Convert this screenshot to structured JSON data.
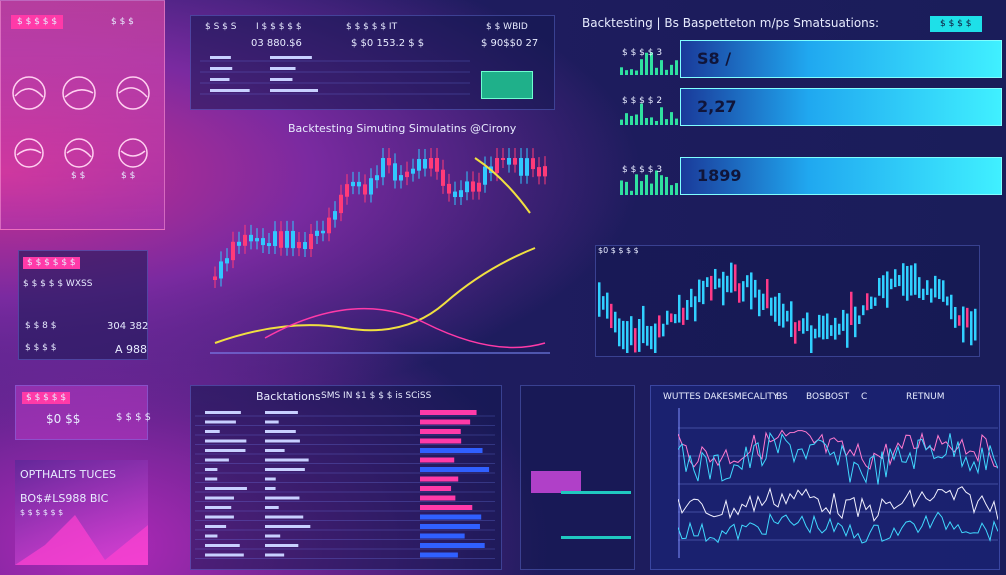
{
  "left_panel": {
    "title": "$ $ $  $ $",
    "labels": [
      "$ $ $",
      "$ $",
      "$ $"
    ]
  },
  "top_table": {
    "headers": [
      "$ S $ S",
      "I $ $ $ $ $",
      "$ $ $ $ $ IT",
      "$ $ WBID"
    ],
    "values": [
      "03 880.$6",
      "$ $0 153.2 $ $",
      "$ 90$$0 27"
    ]
  },
  "center_chart": {
    "title": "Backtesting  Simuting  Simulatins  @Cirony"
  },
  "right_header": {
    "title": "Backtesting | Bs Baspetteton m/ps Smatsuations:",
    "button": "$ $ $ $"
  },
  "metrics": [
    {
      "label": "$ $ $ $ 3",
      "value": "S8 /"
    },
    {
      "label": "$ $ $ $ 2",
      "value": "2,27"
    },
    {
      "label": "$ $ $ $ 3",
      "value": "1899"
    }
  ],
  "right_chart": {
    "label": "$0 $ $ $ $"
  },
  "left_mid": {
    "title": "$ $ $ $ $ $",
    "line": "$ $ $ $ $ WXSS",
    "rows": [
      [
        "$ $ 8 $",
        "304 382"
      ],
      [
        "$ $ $ $",
        "A 988"
      ]
    ]
  },
  "left_low": {
    "title": "$ $ $ $ $",
    "values": [
      "$0 $$",
      "$ $ $ $"
    ]
  },
  "left_bottom": {
    "title": "OPTHALTS TUCES",
    "value": "BO$#LS988 BIC",
    "sub": "$ $ $ $ $ $"
  },
  "bottom_table": {
    "title": "Backtations",
    "subtitle": "SMS IN  $1  $ $ $  is  SCiSS"
  },
  "bottom_right": {
    "title": "WUTTES DAKESMECALITY",
    "tabs": [
      "BS",
      "BOSBOST",
      "C",
      "RETNUM"
    ]
  }
}
